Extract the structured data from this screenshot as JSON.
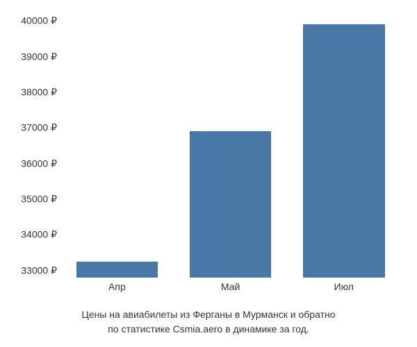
{
  "chart": {
    "type": "bar",
    "categories": [
      "Апр",
      "Май",
      "Июл"
    ],
    "values": [
      33250,
      36900,
      39900
    ],
    "bar_color": "#4a78a6",
    "background_color": "#ffffff",
    "text_color": "#333333",
    "y_ticks": [
      33000,
      34000,
      35000,
      36000,
      37000,
      38000,
      39000,
      40000
    ],
    "y_tick_labels": [
      "33000 ₽",
      "34000 ₽",
      "35000 ₽",
      "36000 ₽",
      "37000 ₽",
      "38000 ₽",
      "39000 ₽",
      "40000 ₽"
    ],
    "y_min": 32800,
    "y_max": 40200,
    "label_fontsize": 14,
    "bar_width_pct": 24,
    "bar_gap_pct": 9.3,
    "bar_start_pct": 4
  },
  "caption": {
    "line1": "Цены на авиабилеты из Ферганы в Мурманск и обратно",
    "line2": "по статистике Csmia.aero в динамике за год."
  }
}
